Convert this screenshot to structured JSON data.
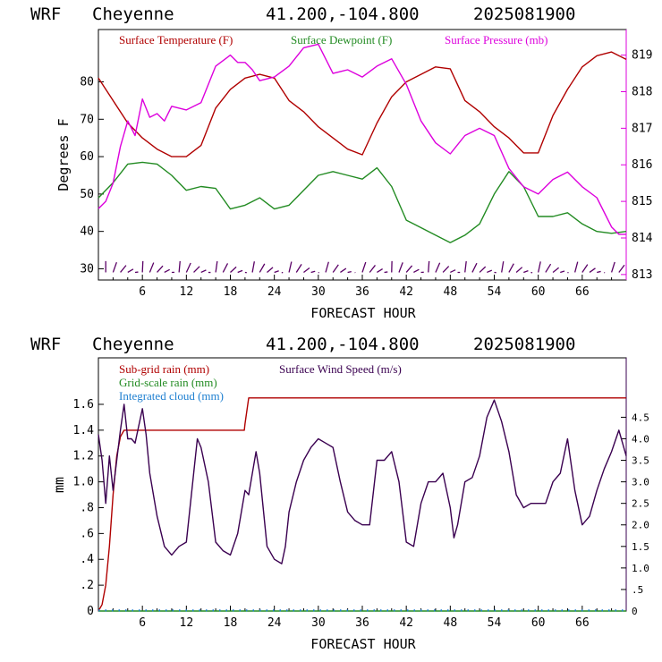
{
  "chart_data": [
    {
      "type": "line",
      "header": {
        "model": "WRF",
        "location": "Cheyenne",
        "coords": "41.200,-104.800",
        "init": "2025081900"
      },
      "xlabel": "FORECAST HOUR",
      "ylabel": "Degrees F",
      "xlim": [
        0,
        72
      ],
      "ylim": [
        27,
        94
      ],
      "y2lim": [
        812.85,
        819.7
      ],
      "x_ticks": [
        "6",
        "12",
        "18",
        "24",
        "30",
        "36",
        "42",
        "48",
        "54",
        "60",
        "66"
      ],
      "y_ticks": [
        "30",
        "40",
        "50",
        "60",
        "70",
        "80"
      ],
      "y2_ticks": [
        "813",
        "814",
        "815",
        "816",
        "817",
        "818",
        "819"
      ],
      "series": [
        {
          "name": "Surface Temperature (F)",
          "color": "#b00000",
          "axis": "left",
          "x": [
            0,
            2,
            4,
            6,
            8,
            10,
            12,
            14,
            16,
            18,
            20,
            22,
            24,
            26,
            28,
            30,
            32,
            34,
            36,
            38,
            40,
            42,
            44,
            46,
            48,
            50,
            52,
            54,
            56,
            58,
            60,
            62,
            64,
            66,
            68,
            70,
            72
          ],
          "y": [
            81,
            75,
            69,
            65,
            62,
            60,
            60,
            63,
            73,
            78,
            81,
            82,
            81,
            75,
            72,
            68,
            65,
            62,
            60.5,
            69,
            76,
            80,
            82,
            84,
            83.5,
            75,
            72,
            68,
            65,
            61,
            61,
            71,
            78,
            84,
            87,
            88,
            86
          ]
        },
        {
          "name": "Surface Dewpoint (F)",
          "color": "#228b22",
          "axis": "left",
          "x": [
            0,
            2,
            4,
            6,
            8,
            10,
            12,
            14,
            16,
            18,
            20,
            22,
            24,
            26,
            28,
            30,
            32,
            34,
            36,
            38,
            40,
            42,
            44,
            46,
            48,
            50,
            52,
            54,
            56,
            58,
            60,
            62,
            64,
            66,
            68,
            70,
            72
          ],
          "y": [
            49,
            53,
            58,
            58.5,
            58,
            55,
            51,
            52,
            51.5,
            46,
            47,
            49,
            46,
            47,
            51,
            55,
            56,
            55,
            54,
            57,
            52,
            43,
            41,
            39,
            37,
            39,
            42,
            50,
            56,
            52,
            44,
            44,
            45,
            42,
            40,
            39.5,
            40
          ]
        },
        {
          "name": "Surface Pressure (mb)",
          "color": "#dd00dd",
          "axis": "right",
          "x": [
            0,
            1,
            2,
            3,
            4,
            5,
            6,
            7,
            8,
            9,
            10,
            12,
            14,
            16,
            18,
            19,
            20,
            21,
            22,
            24,
            26,
            28,
            30,
            32,
            34,
            36,
            38,
            40,
            42,
            44,
            46,
            48,
            50,
            52,
            54,
            56,
            58,
            60,
            62,
            64,
            66,
            68,
            70,
            71,
            72
          ],
          "y": [
            814.8,
            815,
            815.5,
            816.5,
            817.2,
            816.8,
            817.8,
            817.3,
            817.4,
            817.2,
            817.6,
            817.5,
            817.7,
            818.7,
            819,
            818.8,
            818.8,
            818.6,
            818.3,
            818.4,
            818.7,
            819.2,
            819.3,
            818.5,
            818.6,
            818.4,
            818.7,
            818.9,
            818.2,
            817.2,
            816.6,
            816.3,
            816.8,
            817,
            816.8,
            815.9,
            815.4,
            815.2,
            815.6,
            815.8,
            815.4,
            815.1,
            814.3,
            814.1,
            814.1
          ]
        }
      ],
      "wind_barbs": {
        "y": 30,
        "x": [
          1,
          2,
          3,
          4,
          5,
          6,
          7,
          8,
          9,
          10,
          11,
          12,
          13,
          14,
          15,
          16,
          17,
          18,
          19,
          20,
          21,
          22,
          23,
          24,
          25,
          26,
          27,
          28,
          29,
          30,
          31,
          32,
          33,
          34,
          35,
          36,
          37,
          38,
          39,
          40,
          41,
          42,
          43,
          44,
          45,
          46,
          47,
          48,
          49,
          50,
          51,
          52,
          53,
          54,
          55,
          56,
          57,
          58,
          59,
          60,
          61,
          62,
          63,
          64,
          65,
          66,
          67,
          68,
          69,
          70,
          71
        ]
      }
    },
    {
      "type": "line",
      "header": {
        "model": "WRF",
        "location": "Cheyenne",
        "coords": "41.200,-104.800",
        "init": "2025081900"
      },
      "xlabel": "FORECAST HOUR",
      "ylabel": "mm",
      "xlim": [
        0,
        72
      ],
      "ylim": [
        0,
        1.96
      ],
      "y2lim": [
        0,
        5.88
      ],
      "x_ticks": [
        "6",
        "12",
        "18",
        "24",
        "30",
        "36",
        "42",
        "48",
        "54",
        "60",
        "66"
      ],
      "y_ticks": [
        "0",
        ".2",
        ".4",
        ".6",
        ".8",
        "1.0",
        "1.2",
        "1.4",
        "1.6"
      ],
      "y2_ticks": [
        "0",
        ".5",
        "1.0",
        "1.5",
        "2.0",
        "2.5",
        "3.0",
        "3.5",
        "4.0",
        "4.5"
      ],
      "series": [
        {
          "name": "Sub-grid rain (mm)",
          "color": "#b00000",
          "axis": "left",
          "x": [
            0,
            0.5,
            1,
            1.5,
            2,
            2.5,
            3,
            3.5,
            4,
            19.9,
            20,
            20.5,
            72
          ],
          "y": [
            0,
            0.05,
            0.2,
            0.5,
            0.9,
            1.2,
            1.35,
            1.4,
            1.4,
            1.4,
            1.45,
            1.65,
            1.65
          ]
        },
        {
          "name": "Grid-scale rain (mm)",
          "color": "#228b22",
          "axis": "left",
          "x": [
            0,
            72
          ],
          "y": [
            0,
            0
          ]
        },
        {
          "name": "Integrated cloud (mm)",
          "color": "#1e7fd0",
          "axis": "left",
          "style": "dotted",
          "x": [
            0,
            72
          ],
          "y": [
            0.005,
            0.005
          ]
        },
        {
          "name": "Surface Wind Speed (m/s)",
          "color": "#3a0050",
          "axis": "right",
          "x": [
            0,
            0.5,
            1,
            1.5,
            2,
            2.5,
            3,
            3.5,
            4,
            4.5,
            5,
            5.5,
            6,
            6.5,
            7,
            8,
            9,
            10,
            11,
            12,
            13,
            13.5,
            14,
            15,
            16,
            17,
            18,
            19,
            20,
            20.5,
            21,
            21.5,
            22,
            23,
            24,
            25,
            25.5,
            26,
            27,
            28,
            29,
            30,
            31,
            32,
            33,
            34,
            35,
            36,
            37,
            38,
            39,
            40,
            41,
            42,
            43,
            44,
            45,
            46,
            47,
            48,
            48.5,
            49,
            50,
            51,
            52,
            53,
            54,
            55,
            56,
            57,
            58,
            59,
            60,
            61,
            62,
            63,
            64,
            65,
            66,
            67,
            68,
            69,
            70,
            71,
            72
          ],
          "y": [
            4.1,
            3.5,
            2.5,
            3.6,
            2.8,
            3.5,
            4.2,
            4.8,
            4.0,
            4.0,
            3.9,
            4.3,
            4.7,
            4.1,
            3.2,
            2.2,
            1.5,
            1.3,
            1.5,
            1.6,
            3.2,
            4.0,
            3.8,
            3.0,
            1.6,
            1.4,
            1.3,
            1.8,
            2.8,
            2.7,
            3.2,
            3.7,
            3.2,
            1.5,
            1.2,
            1.1,
            1.5,
            2.3,
            3.0,
            3.5,
            3.8,
            4.0,
            3.9,
            3.8,
            3.0,
            2.3,
            2.1,
            2.0,
            2.0,
            3.5,
            3.5,
            3.7,
            3.0,
            1.6,
            1.5,
            2.5,
            3.0,
            3.0,
            3.2,
            2.4,
            1.7,
            2.0,
            3.0,
            3.1,
            3.6,
            4.5,
            4.9,
            4.4,
            3.7,
            2.7,
            2.4,
            2.5,
            2.5,
            2.5,
            3.0,
            3.2,
            4.0,
            2.8,
            2.0,
            2.2,
            2.8,
            3.3,
            3.7,
            4.2,
            3.6
          ]
        }
      ]
    }
  ]
}
